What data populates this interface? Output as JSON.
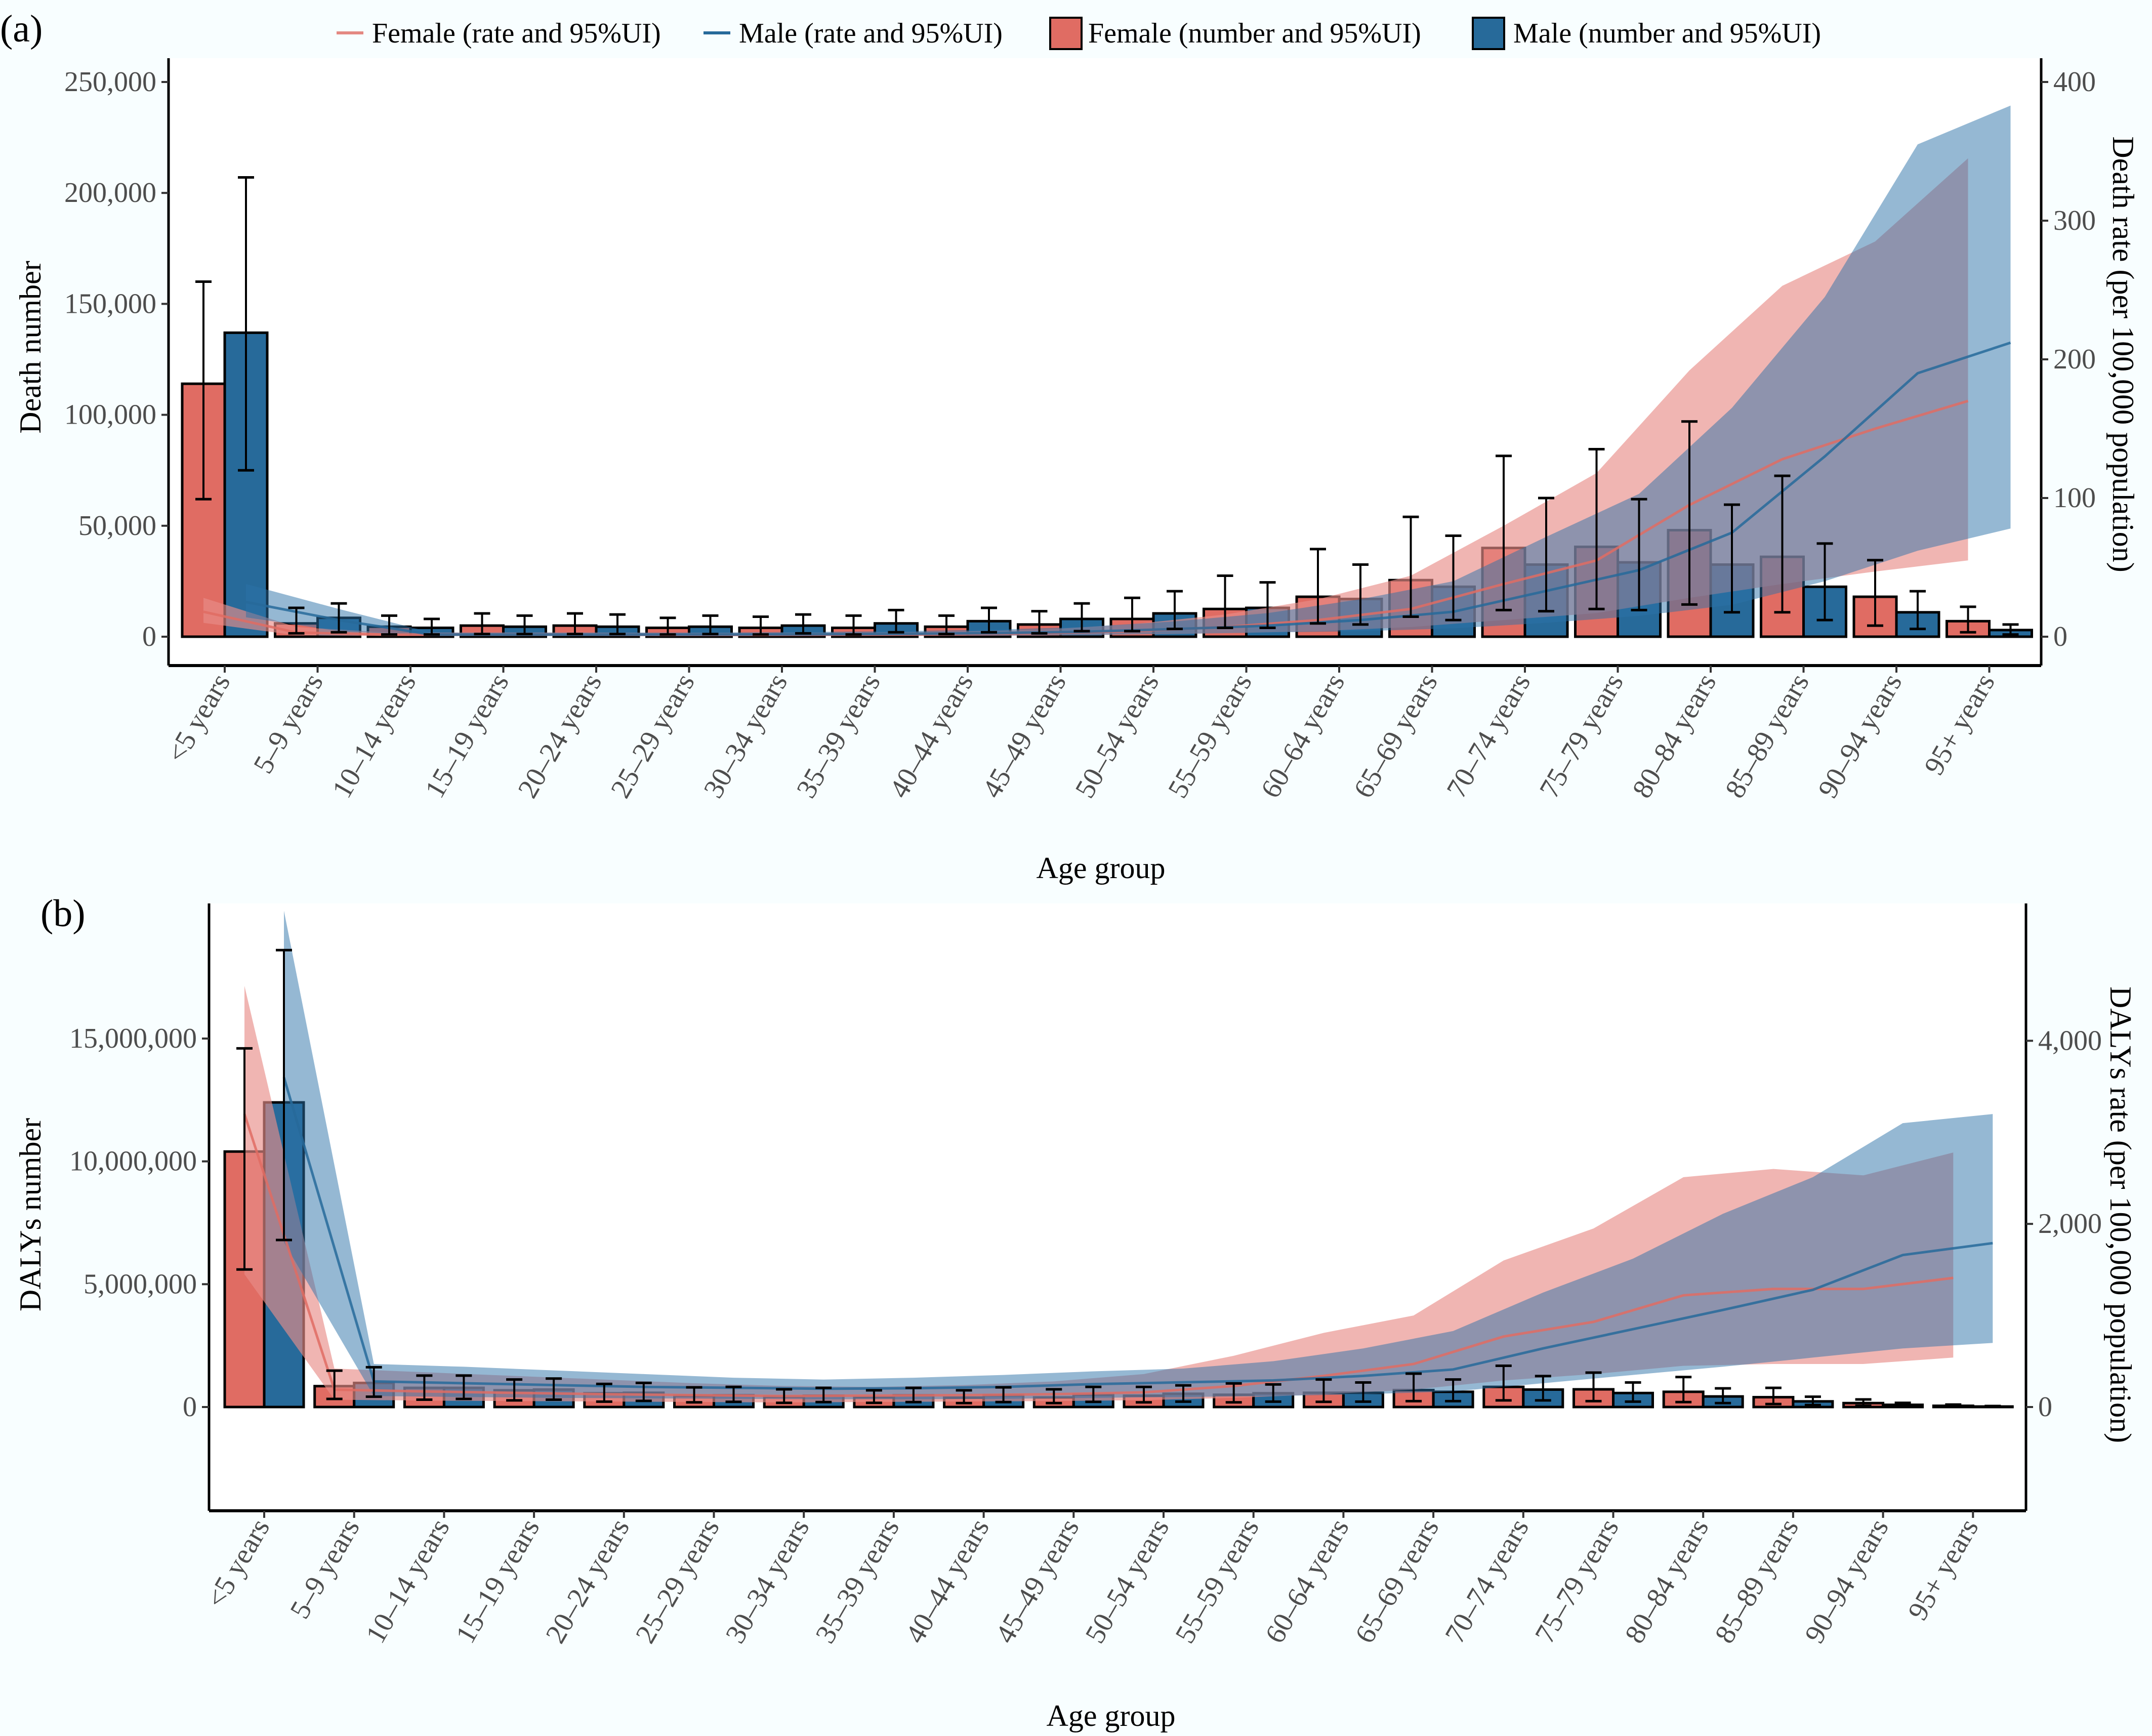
{
  "legend": {
    "items": [
      {
        "label": "Female (rate and 95%UI)",
        "kind": "line",
        "color": "#E06C63"
      },
      {
        "label": "Male (rate and 95%UI)",
        "kind": "line",
        "color": "#276A9A"
      },
      {
        "label": "Female (number and 95%UI)",
        "kind": "bar",
        "color": "#E06C63"
      },
      {
        "label": "Male (number and 95%UI)",
        "kind": "bar",
        "color": "#276A9A"
      }
    ],
    "placement": "top"
  },
  "colors": {
    "female": "#E06C63",
    "male": "#276A9A",
    "female_band": "#E88E88",
    "male_band": "#2B72A8",
    "background": "#F8FEFF",
    "plot_background": "#FFFFFF"
  },
  "chart_data": [
    {
      "panel": "(a)",
      "type": "bar",
      "title": "",
      "xlabel": "Age group",
      "ylabel": "Death number",
      "y2label": "Death rate (per 100,000 population)",
      "ylim": [
        0,
        250000
      ],
      "y2lim": [
        0,
        400
      ],
      "yticks": [
        "0",
        "50,000",
        "100,000",
        "150,000",
        "200,000",
        "250,000"
      ],
      "ytick_values": [
        0,
        50000,
        100000,
        150000,
        200000,
        250000
      ],
      "y2ticks": [
        "0",
        "100",
        "200",
        "300",
        "400"
      ],
      "y2tick_values": [
        0,
        100,
        200,
        300,
        400
      ],
      "grid": false,
      "categories": [
        "<5 years",
        "5–9 years",
        "10–14 years",
        "15–19 years",
        "20–24 years",
        "25–29 years",
        "30–34 years",
        "35–39 years",
        "40–44 years",
        "45–49 years",
        "50–54 years",
        "55–59 years",
        "60–64 years",
        "65–69 years",
        "70–74 years",
        "75–79 years",
        "80–84 years",
        "85–89 years",
        "90–94 years",
        "95+ years"
      ],
      "bar_series": [
        {
          "name": "Female (number and 95%UI)",
          "values": [
            114000,
            6000,
            4500,
            5000,
            5000,
            4000,
            4000,
            4000,
            4500,
            5500,
            8000,
            12500,
            18000,
            25500,
            40000,
            40500,
            48000,
            36000,
            18000,
            7000
          ],
          "lower": [
            62000,
            1500,
            1000,
            1200,
            1200,
            1000,
            1000,
            1000,
            1200,
            1500,
            2500,
            4000,
            6000,
            9000,
            12000,
            12500,
            14500,
            11000,
            5000,
            2000
          ],
          "upper": [
            160000,
            13000,
            9500,
            10500,
            10500,
            8500,
            9000,
            9500,
            9500,
            11500,
            17500,
            27500,
            39500,
            54000,
            81500,
            84500,
            97000,
            72500,
            34500,
            13500
          ]
        },
        {
          "name": "Male (number and 95%UI)",
          "values": [
            137000,
            8500,
            4000,
            4500,
            4500,
            4500,
            5000,
            6000,
            7000,
            8000,
            10500,
            13000,
            17000,
            22500,
            32500,
            33500,
            32500,
            22500,
            11000,
            3000
          ],
          "lower": [
            75000,
            2000,
            1000,
            1200,
            1200,
            1200,
            1500,
            2000,
            2000,
            2500,
            3500,
            4000,
            5500,
            7500,
            11500,
            12000,
            11000,
            7500,
            3500,
            1000
          ],
          "upper": [
            207000,
            15000,
            8000,
            9500,
            10000,
            9500,
            10000,
            12000,
            13000,
            15000,
            20500,
            24500,
            32500,
            45500,
            62500,
            62000,
            59500,
            42000,
            20500,
            5500
          ]
        }
      ],
      "line_series": [
        {
          "name": "Female (rate and 95%UI)",
          "values": [
            18,
            3,
            1.5,
            1.5,
            1.5,
            1.3,
            1.3,
            1.5,
            1.8,
            2.5,
            4,
            7,
            12,
            20,
            38,
            55,
            95,
            128,
            150,
            170
          ],
          "lower": [
            10,
            1,
            0.5,
            0.5,
            0.5,
            0.5,
            0.5,
            0.5,
            0.6,
            0.8,
            1.5,
            2.5,
            4,
            7,
            12,
            17,
            28,
            38,
            47,
            55
          ],
          "upper": [
            28,
            7,
            3,
            3,
            3,
            2.8,
            2.8,
            3,
            3.6,
            5,
            9,
            16,
            27,
            44,
            80,
            118,
            192,
            253,
            285,
            345
          ]
        },
        {
          "name": "Male (rate and 95%UI)",
          "values": [
            25,
            12,
            1.5,
            1.5,
            1.5,
            1.5,
            1.7,
            2,
            2.5,
            3.5,
            5.5,
            8,
            12,
            18,
            33,
            48,
            75,
            130,
            190,
            212
          ],
          "lower": [
            14,
            4,
            0.5,
            0.5,
            0.5,
            0.5,
            0.6,
            0.7,
            0.8,
            1.2,
            2,
            3,
            4,
            6,
            10,
            15,
            23,
            40,
            62,
            78
          ],
          "upper": [
            38,
            20,
            3,
            3,
            3,
            3,
            3.4,
            4,
            5,
            7,
            11,
            17,
            27,
            40,
            72,
            103,
            165,
            245,
            355,
            383
          ]
        }
      ]
    },
    {
      "panel": "(b)",
      "type": "bar",
      "title": "",
      "xlabel": "Age group",
      "ylabel": "DALYs number",
      "y2label": "DALYs rate (per 100,000 population)",
      "ylim": [
        0,
        20500000
      ],
      "y2lim": [
        0,
        5500
      ],
      "yticks": [
        "0",
        "5,000,000",
        "10,000,000",
        "15,000,000"
      ],
      "ytick_values": [
        0,
        5000000,
        10000000,
        15000000
      ],
      "y2ticks": [
        "0",
        "2,000",
        "4,000"
      ],
      "y2tick_values": [
        0,
        2000,
        4000
      ],
      "grid": false,
      "categories": [
        "<5 years",
        "5–9 years",
        "10–14 years",
        "15–19 years",
        "20–24 years",
        "25–29 years",
        "30–34 years",
        "35–39 years",
        "40–44 years",
        "45–49 years",
        "50–54 years",
        "55–59 years",
        "60–64 years",
        "65–69 years",
        "70–74 years",
        "75–79 years",
        "80–84 years",
        "85–89 years",
        "90–94 years",
        "95+ years"
      ],
      "bar_series": [
        {
          "name": "Female (number and 95%UI)",
          "values": [
            10400000,
            850000,
            780000,
            680000,
            560000,
            460000,
            420000,
            400000,
            380000,
            390000,
            460000,
            500000,
            580000,
            690000,
            820000,
            720000,
            620000,
            400000,
            160000,
            50000
          ],
          "lower": [
            5600000,
            330000,
            300000,
            270000,
            220000,
            190000,
            170000,
            170000,
            160000,
            160000,
            190000,
            190000,
            210000,
            240000,
            270000,
            240000,
            200000,
            120000,
            50000,
            15000
          ],
          "upper": [
            14600000,
            1480000,
            1280000,
            1120000,
            940000,
            800000,
            720000,
            680000,
            680000,
            720000,
            820000,
            960000,
            1120000,
            1360000,
            1680000,
            1400000,
            1220000,
            780000,
            310000,
            100000
          ]
        },
        {
          "name": "Male (number and 95%UI)",
          "values": [
            12400000,
            980000,
            780000,
            710000,
            580000,
            480000,
            460000,
            480000,
            480000,
            500000,
            540000,
            560000,
            580000,
            620000,
            710000,
            570000,
            430000,
            230000,
            90000,
            20000
          ],
          "lower": [
            6800000,
            420000,
            330000,
            300000,
            250000,
            210000,
            200000,
            200000,
            200000,
            210000,
            220000,
            220000,
            220000,
            240000,
            270000,
            220000,
            160000,
            80000,
            30000,
            8000
          ],
          "upper": [
            18600000,
            1620000,
            1280000,
            1160000,
            980000,
            820000,
            780000,
            780000,
            800000,
            820000,
            880000,
            920000,
            1000000,
            1120000,
            1260000,
            1000000,
            760000,
            420000,
            170000,
            40000
          ]
        }
      ],
      "line_series": [
        {
          "name": "Female (rate and 95%UI)",
          "values": [
            3200,
            190,
            170,
            155,
            140,
            130,
            120,
            125,
            130,
            140,
            160,
            230,
            340,
            470,
            770,
            930,
            1220,
            1290,
            1290,
            1410
          ],
          "lower": [
            1450,
            80,
            70,
            65,
            60,
            55,
            50,
            55,
            60,
            65,
            75,
            100,
            140,
            190,
            290,
            360,
            450,
            470,
            470,
            540
          ],
          "upper": [
            4600,
            420,
            380,
            340,
            300,
            260,
            230,
            220,
            240,
            280,
            360,
            560,
            810,
            1000,
            1600,
            1950,
            2510,
            2600,
            2530,
            2780
          ]
        },
        {
          "name": "Male (rate and 95%UI)",
          "values": [
            3600,
            280,
            260,
            240,
            220,
            210,
            200,
            205,
            220,
            250,
            270,
            290,
            340,
            410,
            640,
            850,
            1060,
            1280,
            1660,
            1790
          ],
          "lower": [
            1800,
            120,
            110,
            100,
            95,
            90,
            85,
            85,
            90,
            100,
            110,
            120,
            140,
            170,
            260,
            350,
            440,
            540,
            640,
            700
          ],
          "upper": [
            5420,
            470,
            440,
            400,
            360,
            320,
            300,
            320,
            350,
            390,
            420,
            500,
            640,
            830,
            1250,
            1620,
            2110,
            2510,
            3100,
            3200
          ]
        }
      ]
    }
  ]
}
